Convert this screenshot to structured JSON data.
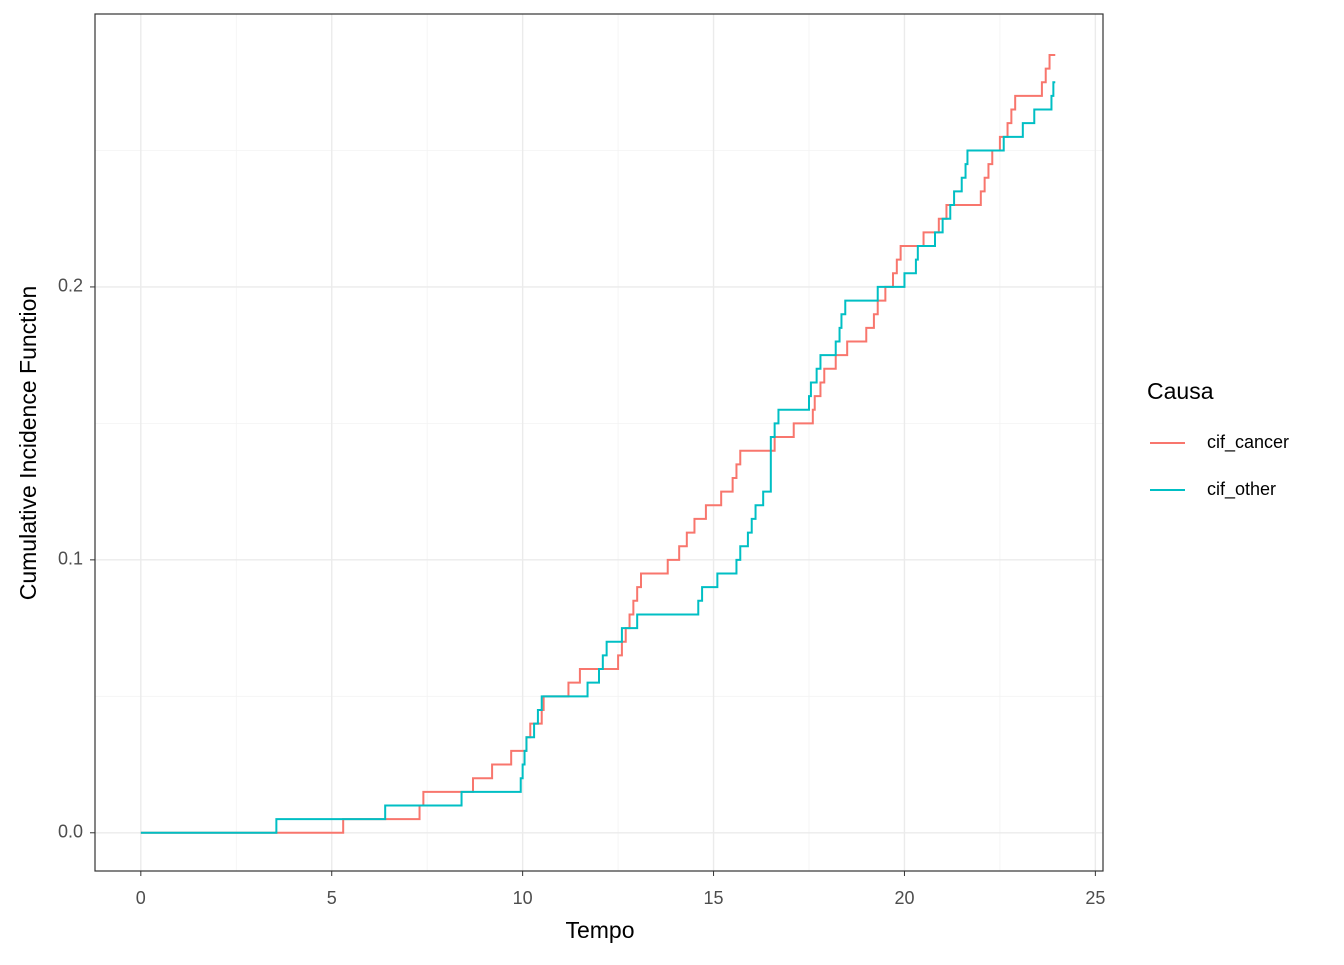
{
  "chart_data": {
    "type": "step",
    "x_label": "Tempo",
    "y_label": "Cumulative Incidence Function",
    "legend_title": "Causa",
    "xlim": [
      -1.2,
      25.2
    ],
    "ylim": [
      -0.014,
      0.3
    ],
    "xticks": [
      0,
      5,
      10,
      15,
      20,
      25
    ],
    "yticks": [
      {
        "value": 0,
        "label": "0.0"
      },
      0.1,
      0.2
    ],
    "grid": true,
    "legend_position": "right",
    "series": [
      {
        "name": "cif_cancer",
        "color": "#F8766D",
        "x": [
          0,
          5.3,
          7.3,
          7.4,
          8.7,
          9.2,
          9.7,
          10.1,
          10.2,
          10.5,
          10.55,
          11.2,
          11.5,
          12.5,
          12.6,
          12.7,
          12.8,
          12.9,
          13.0,
          13.1,
          13.8,
          14.1,
          14.3,
          14.5,
          14.8,
          15.2,
          15.5,
          15.6,
          15.7,
          16.6,
          17.1,
          17.6,
          17.65,
          17.8,
          17.9,
          18.2,
          18.5,
          19.0,
          19.2,
          19.3,
          19.5,
          19.7,
          19.8,
          19.9,
          20.5,
          20.9,
          21.1,
          22.0,
          22.1,
          22.2,
          22.3,
          22.5,
          22.7,
          22.8,
          22.9,
          23.6,
          23.7,
          23.8,
          23.95
        ],
        "values": [
          0,
          0.005,
          0.01,
          0.015,
          0.02,
          0.025,
          0.03,
          0.035,
          0.04,
          0.045,
          0.05,
          0.055,
          0.06,
          0.065,
          0.07,
          0.075,
          0.08,
          0.085,
          0.09,
          0.095,
          0.1,
          0.105,
          0.11,
          0.115,
          0.12,
          0.125,
          0.13,
          0.135,
          0.14,
          0.145,
          0.15,
          0.155,
          0.16,
          0.165,
          0.17,
          0.175,
          0.18,
          0.185,
          0.19,
          0.195,
          0.2,
          0.205,
          0.21,
          0.215,
          0.22,
          0.225,
          0.23,
          0.235,
          0.24,
          0.245,
          0.25,
          0.255,
          0.26,
          0.265,
          0.27,
          0.275,
          0.28,
          0.285,
          0.285
        ]
      },
      {
        "name": "cif_other",
        "color": "#00BFC4",
        "x": [
          0,
          3.55,
          6.4,
          8.4,
          9.95,
          10.0,
          10.05,
          10.1,
          10.3,
          10.4,
          10.5,
          11.7,
          12.0,
          12.1,
          12.2,
          12.6,
          13.0,
          14.6,
          14.7,
          15.1,
          15.6,
          15.7,
          15.9,
          16.0,
          16.1,
          16.3,
          16.5,
          16.6,
          16.7,
          17.5,
          17.55,
          17.7,
          17.8,
          18.2,
          18.3,
          18.35,
          18.45,
          19.3,
          20.0,
          20.3,
          20.35,
          20.8,
          21.0,
          21.2,
          21.3,
          21.5,
          21.6,
          21.65,
          22.6,
          23.1,
          23.4,
          23.85,
          23.9,
          23.95
        ],
        "values": [
          0,
          0.005,
          0.01,
          0.015,
          0.02,
          0.025,
          0.03,
          0.035,
          0.04,
          0.045,
          0.05,
          0.055,
          0.06,
          0.065,
          0.07,
          0.075,
          0.08,
          0.085,
          0.09,
          0.095,
          0.1,
          0.105,
          0.11,
          0.115,
          0.12,
          0.125,
          0.145,
          0.15,
          0.155,
          0.16,
          0.165,
          0.17,
          0.175,
          0.18,
          0.185,
          0.19,
          0.195,
          0.2,
          0.205,
          0.21,
          0.215,
          0.22,
          0.225,
          0.23,
          0.235,
          0.24,
          0.245,
          0.25,
          0.255,
          0.26,
          0.265,
          0.27,
          0.275,
          0.275
        ]
      }
    ]
  }
}
